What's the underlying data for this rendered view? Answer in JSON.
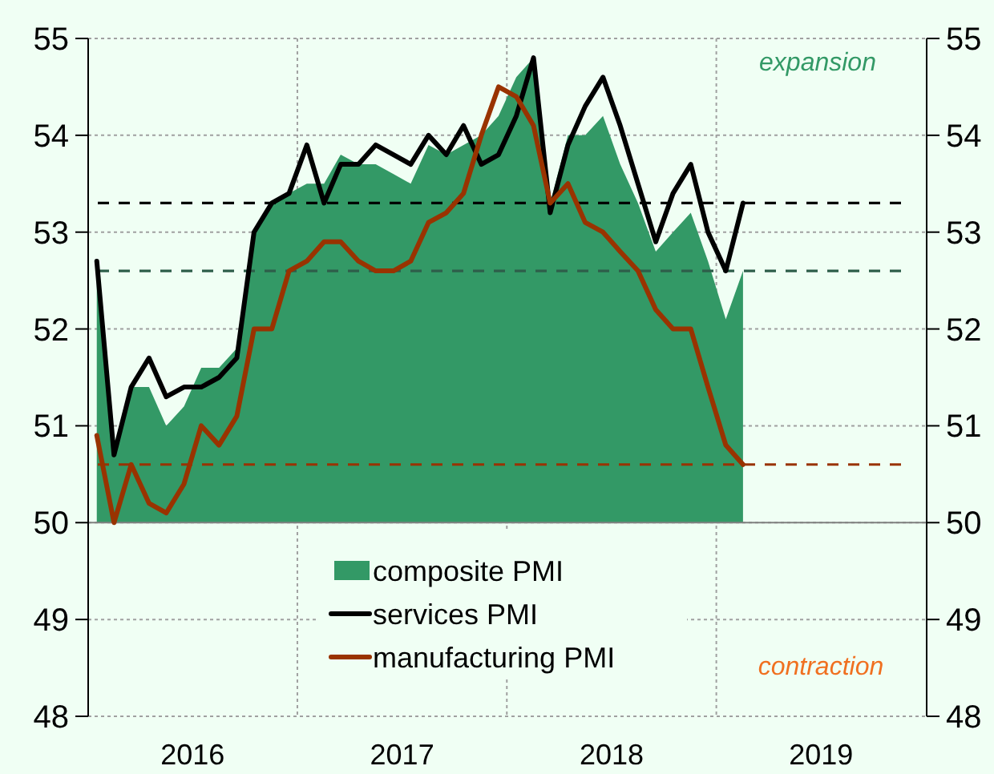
{
  "chart_data": {
    "type": "line",
    "x": [
      "2016-01-16",
      "2016-02-15",
      "2016-03-16",
      "2016-04-16",
      "2016-05-16",
      "2016-06-16",
      "2016-07-16",
      "2016-08-16",
      "2016-09-16",
      "2016-10-16",
      "2016-11-16",
      "2016-12-16",
      "2017-01-16",
      "2017-02-15",
      "2017-03-16",
      "2017-04-16",
      "2017-05-16",
      "2017-06-16",
      "2017-07-16",
      "2017-08-16",
      "2017-09-16",
      "2017-10-16",
      "2017-11-16",
      "2017-12-16",
      "2018-01-16",
      "2018-02-15",
      "2018-03-16",
      "2018-04-16",
      "2018-05-16",
      "2018-06-16",
      "2018-07-16",
      "2018-08-16",
      "2018-09-16",
      "2018-10-16",
      "2018-11-16",
      "2018-12-16",
      "2019-01-16",
      "2019-02-15"
    ],
    "series": [
      {
        "name": "composite PMI",
        "type": "area",
        "color": "#339966",
        "values": [
          52.6,
          50.7,
          51.4,
          51.4,
          51.0,
          51.2,
          51.6,
          51.6,
          51.8,
          53.0,
          53.3,
          53.4,
          53.5,
          53.5,
          53.8,
          53.7,
          53.7,
          53.6,
          53.5,
          53.9,
          53.8,
          53.9,
          54.0,
          54.2,
          54.6,
          54.8,
          53.3,
          54.0,
          54.0,
          54.2,
          53.7,
          53.3,
          52.8,
          53.0,
          53.2,
          52.7,
          52.1,
          52.6
        ]
      },
      {
        "name": "services PMI",
        "color": "#000000",
        "values": [
          52.7,
          50.7,
          51.4,
          51.7,
          51.3,
          51.4,
          51.4,
          51.5,
          51.7,
          53.0,
          53.3,
          53.4,
          53.9,
          53.3,
          53.7,
          53.7,
          53.9,
          53.8,
          53.7,
          54.0,
          53.8,
          54.1,
          53.7,
          53.8,
          54.2,
          54.8,
          53.2,
          53.9,
          54.3,
          54.6,
          54.1,
          53.5,
          52.9,
          53.4,
          53.7,
          53.0,
          52.6,
          53.3
        ]
      },
      {
        "name": "manufacturing PMI",
        "color": "#993300",
        "values": [
          50.9,
          50.0,
          50.6,
          50.2,
          50.1,
          50.4,
          51.0,
          50.8,
          51.1,
          52.0,
          52.0,
          52.6,
          52.7,
          52.9,
          52.9,
          52.7,
          52.6,
          52.6,
          52.7,
          53.1,
          53.2,
          53.4,
          54.0,
          54.5,
          54.4,
          54.1,
          53.3,
          53.5,
          53.1,
          53.0,
          52.8,
          52.6,
          52.2,
          52.0,
          52.0,
          51.4,
          50.8,
          50.6
        ]
      }
    ],
    "xlim": [
      "2016-01-01",
      "2020-01-01"
    ],
    "xticks": [
      {
        "value": "2016-07-01",
        "label": "2016"
      },
      {
        "value": "2017-07-01",
        "label": "2017"
      },
      {
        "value": "2018-07-01",
        "label": "2018"
      },
      {
        "value": "2019-07-01",
        "label": "2019"
      }
    ],
    "ylim": [
      48,
      55
    ],
    "yticks": [
      48,
      49,
      50,
      51,
      52,
      53,
      54,
      55
    ],
    "y2lim": [
      48,
      55
    ],
    "y2ticks": [
      48,
      49,
      50,
      51,
      52,
      53,
      54,
      55
    ],
    "ref_lines": [
      {
        "axis": "y",
        "value": 50,
        "color": "#808080",
        "line_style": "solid"
      },
      {
        "axis": "y",
        "value": 53.3,
        "color": "#000000",
        "line_style": "dashed"
      },
      {
        "axis": "y",
        "value": 52.6,
        "color": "#2e5e4a",
        "line_style": "dashed"
      },
      {
        "axis": "y",
        "value": 50.6,
        "color": "#993300",
        "line_style": "dashed"
      }
    ],
    "annotations": [
      "expansion",
      "contraction"
    ],
    "grid": true,
    "legend": "bottom",
    "line_style": "solid",
    "marker": "none"
  }
}
